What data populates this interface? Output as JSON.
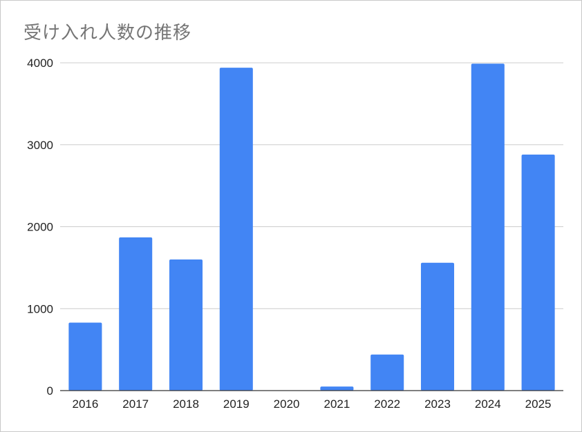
{
  "chart_data": {
    "type": "bar",
    "title": "受け入れ人数の推移",
    "xlabel": "",
    "ylabel": "",
    "categories": [
      "2016",
      "2017",
      "2018",
      "2019",
      "2020",
      "2021",
      "2022",
      "2023",
      "2024",
      "2025"
    ],
    "values": [
      830,
      1870,
      1600,
      3940,
      0,
      50,
      440,
      1560,
      3990,
      2880
    ],
    "ylim": [
      0,
      4000
    ],
    "yticks": [
      0,
      1000,
      2000,
      3000,
      4000
    ],
    "yticks_display": [
      "0",
      "1000",
      "2000",
      "3000",
      "4000"
    ],
    "grid": true,
    "legend": "none",
    "bar_color": "#4285f4",
    "grid_color": "#cccccc",
    "axis_color": "#333333"
  }
}
